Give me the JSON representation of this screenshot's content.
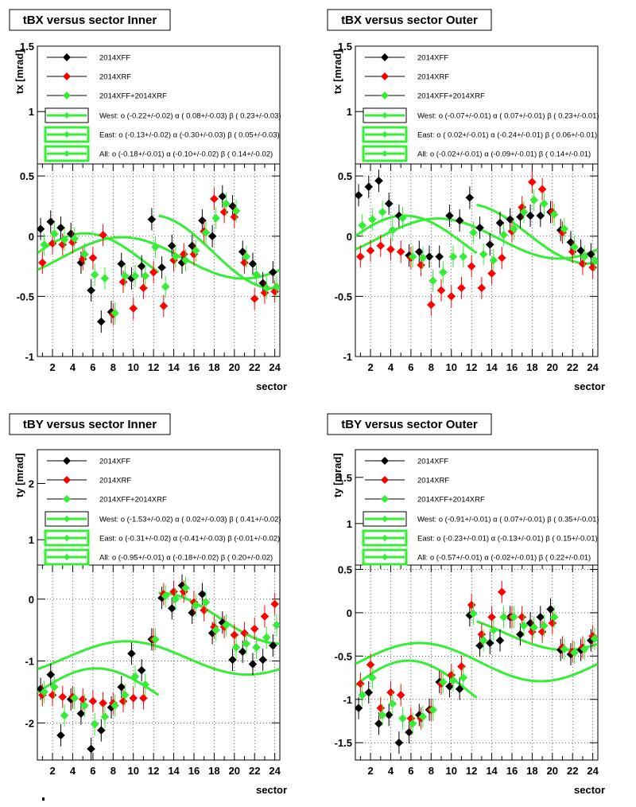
{
  "chart_data": [
    {
      "type": "scatter",
      "title": "tBX versus  sector Inner",
      "ylabel": "t_x [mrad]",
      "xlabel": "sector",
      "xlim": [
        0.5,
        24.5
      ],
      "ylim_main": [
        -1,
        0.6
      ],
      "ylim_legend": [
        0.6,
        1.5
      ],
      "yticks_main": [
        "-1",
        "-0.5",
        "0",
        "0.5"
      ],
      "yticks_legend": [
        "1",
        "1.5"
      ],
      "legend": [
        {
          "label": "2014XFF"
        },
        {
          "label": "2014XRF"
        },
        {
          "label": "2014XFF+2014XRF"
        },
        {
          "label": "West: o (-0.22+/-0.02) α ( 0.08+/-0.03) β ( 0.23+/-0.03)"
        },
        {
          "label": "East: o (-0.13+/-0.02) α (-0.30+/-0.03) β ( 0.05+/-0.03)"
        },
        {
          "label": "All: o (-0.18+/-0.01) α (-0.10+/-0.02) β ( 0.14+/-0.02)"
        }
      ],
      "fits": {
        "west": {
          "o": -0.22,
          "a": 0.08,
          "b": 0.23
        },
        "east": {
          "o": -0.13,
          "a": -0.3,
          "b": 0.05
        },
        "all": {
          "o": -0.18,
          "a": -0.1,
          "b": 0.14
        }
      },
      "series": [
        {
          "name": "2014XFF",
          "color": "#000000",
          "x": [
            1,
            2,
            3,
            4,
            5,
            6,
            7,
            8,
            9,
            10,
            11,
            12,
            13,
            14,
            15,
            16,
            17,
            18,
            19,
            20,
            21,
            22,
            23,
            24
          ],
          "y": [
            0.06,
            0.12,
            0.07,
            0.02,
            -0.22,
            -0.45,
            -0.71,
            -0.63,
            -0.23,
            -0.35,
            -0.25,
            0.14,
            -0.26,
            -0.08,
            -0.22,
            -0.08,
            0.13,
            0.0,
            0.33,
            0.25,
            -0.13,
            -0.23,
            -0.39,
            -0.3
          ]
        },
        {
          "name": "2014XRF",
          "color": "#ff0000",
          "x": [
            1,
            2,
            3,
            4,
            5,
            6,
            7,
            8,
            9,
            10,
            11,
            12,
            13,
            14,
            15,
            16,
            17,
            18,
            19,
            20,
            21,
            22,
            23,
            24
          ],
          "y": [
            -0.22,
            -0.06,
            -0.07,
            -0.05,
            -0.19,
            -0.18,
            0.01,
            -0.65,
            -0.38,
            -0.6,
            -0.43,
            -0.3,
            -0.58,
            -0.2,
            -0.15,
            -0.15,
            0.04,
            0.31,
            0.2,
            0.16,
            -0.22,
            -0.52,
            -0.47,
            -0.46
          ]
        },
        {
          "name": "2014XFF+2014XRF",
          "color": "#33ee33",
          "x": [
            1,
            2,
            3,
            4,
            5,
            6,
            7,
            8,
            9,
            10,
            11,
            12,
            13,
            14,
            15,
            16,
            17,
            18,
            19,
            20,
            21,
            22,
            23,
            24
          ],
          "y": [
            -0.07,
            0.02,
            -0.03,
            -0.02,
            -0.15,
            -0.32,
            -0.35,
            -0.64,
            -0.33,
            -0.33,
            -0.33,
            -0.09,
            -0.42,
            -0.17,
            -0.2,
            -0.12,
            0.03,
            0.15,
            0.27,
            0.21,
            -0.17,
            -0.32,
            -0.43,
            -0.42
          ]
        }
      ]
    },
    {
      "type": "scatter",
      "title": "tBX versus  sector Outer",
      "ylabel": "t_x [mrad]",
      "xlabel": "sector",
      "xlim": [
        0.5,
        24.5
      ],
      "ylim_main": [
        -1,
        0.6
      ],
      "ylim_legend": [
        0.6,
        1.5
      ],
      "yticks_main": [
        "-1",
        "-0.5",
        "0",
        "0.5"
      ],
      "yticks_legend": [
        "1",
        "1.5"
      ],
      "legend": [
        {
          "label": "2014XFF"
        },
        {
          "label": "2014XRF"
        },
        {
          "label": "2014XFF+2014XRF"
        },
        {
          "label": "West: o (-0.07+/-0.01) α ( 0.07+/-0.01) β ( 0.23+/-0.01)"
        },
        {
          "label": "East: o ( 0.02+/-0.01) α (-0.24+/-0.01) β ( 0.06+/-0.01)"
        },
        {
          "label": "All: o (-0.02+/-0.01) α (-0.09+/-0.01) β ( 0.14+/-0.01)"
        }
      ],
      "fits": {
        "west": {
          "o": -0.07,
          "a": 0.07,
          "b": 0.23
        },
        "east": {
          "o": 0.02,
          "a": -0.24,
          "b": 0.06
        },
        "all": {
          "o": -0.02,
          "a": -0.09,
          "b": 0.14
        }
      },
      "series": [
        {
          "name": "2014XFF",
          "color": "#000000",
          "x": [
            1,
            2,
            3,
            4,
            5,
            6,
            7,
            8,
            9,
            10,
            11,
            12,
            13,
            14,
            15,
            16,
            17,
            18,
            19,
            20,
            21,
            22,
            23,
            24
          ],
          "y": [
            0.34,
            0.41,
            0.46,
            0.27,
            0.17,
            -0.16,
            -0.13,
            -0.17,
            -0.17,
            0.17,
            0.13,
            0.32,
            0.07,
            -0.07,
            0.11,
            0.14,
            0.16,
            0.17,
            0.17,
            0.2,
            0.05,
            -0.05,
            -0.12,
            -0.15
          ]
        },
        {
          "name": "2014XRF",
          "color": "#ff0000",
          "x": [
            1,
            2,
            3,
            4,
            5,
            6,
            7,
            8,
            9,
            10,
            11,
            12,
            13,
            14,
            15,
            16,
            17,
            18,
            19,
            20,
            21,
            22,
            23,
            24
          ],
          "y": [
            -0.17,
            -0.12,
            -0.08,
            -0.11,
            -0.13,
            -0.18,
            -0.24,
            -0.57,
            -0.45,
            -0.5,
            -0.43,
            -0.25,
            -0.43,
            -0.31,
            -0.18,
            0.04,
            0.24,
            0.45,
            0.39,
            0.2,
            0.03,
            -0.13,
            -0.23,
            -0.26
          ]
        },
        {
          "name": "2014XFF+2014XRF",
          "color": "#33ee33",
          "x": [
            1,
            2,
            3,
            4,
            5,
            6,
            7,
            8,
            9,
            10,
            11,
            12,
            13,
            14,
            15,
            16,
            17,
            18,
            19,
            20,
            21,
            22,
            23,
            24
          ],
          "y": [
            0.09,
            0.14,
            0.2,
            0.05,
            0.15,
            -0.17,
            -0.18,
            -0.37,
            -0.3,
            -0.17,
            -0.17,
            0.03,
            -0.15,
            -0.2,
            0.01,
            0.06,
            0.2,
            0.3,
            0.27,
            0.18,
            0.06,
            -0.09,
            -0.17,
            -0.2
          ]
        }
      ]
    },
    {
      "type": "scatter",
      "title": "tBY versus  sector Inner",
      "ylabel": "t_y [mrad]",
      "xlabel": "sector",
      "xlim": [
        0.5,
        24.5
      ],
      "ylim_main": [
        -2.6,
        0.55
      ],
      "ylim_legend": [
        0.55,
        2.6
      ],
      "yticks_main": [
        "-2",
        "-1",
        "0"
      ],
      "yticks_legend": [
        "1",
        "2"
      ],
      "legend": [
        {
          "label": "2014XFF"
        },
        {
          "label": "2014XRF"
        },
        {
          "label": "2014XFF+2014XRF"
        },
        {
          "label": "West: o (-1.53+/-0.02) α ( 0.02+/-0.03) β ( 0.41+/-0.02)"
        },
        {
          "label": "East: o (-0.31+/-0.02) α (-0.41+/-0.03) β (-0.01+/-0.02)"
        },
        {
          "label": "All: o (-0.95+/-0.01) α (-0.18+/-0.02) β ( 0.20+/-0.02)"
        }
      ],
      "fits": {
        "west": {
          "o": -1.53,
          "a": 0.02,
          "b": 0.41
        },
        "east": {
          "o": -0.31,
          "a": -0.41,
          "b": -0.01
        },
        "all": {
          "o": -0.95,
          "a": -0.18,
          "b": 0.2
        }
      },
      "series": [
        {
          "name": "2014XFF",
          "color": "#000000",
          "x": [
            1,
            2,
            3,
            4,
            5,
            6,
            7,
            8,
            9,
            10,
            11,
            12,
            13,
            14,
            15,
            16,
            17,
            18,
            19,
            20,
            21,
            22,
            23,
            24
          ],
          "y": [
            -1.45,
            -1.22,
            -2.2,
            -1.62,
            -1.85,
            -2.42,
            -2.12,
            -1.75,
            -1.42,
            -0.88,
            -1.15,
            -0.65,
            0.02,
            -0.15,
            0.22,
            -0.22,
            0.08,
            -0.55,
            -0.38,
            -0.98,
            -0.85,
            -1.05,
            -0.98,
            -0.75
          ]
        },
        {
          "name": "2014XRF",
          "color": "#ff0000",
          "x": [
            1,
            2,
            3,
            4,
            5,
            6,
            7,
            8,
            9,
            10,
            11,
            12,
            13,
            14,
            15,
            16,
            17,
            18,
            19,
            20,
            21,
            22,
            23,
            24
          ],
          "y": [
            -1.55,
            -1.55,
            -1.58,
            -1.58,
            -1.62,
            -1.65,
            -1.68,
            -1.68,
            -1.65,
            -1.6,
            -1.6,
            -0.65,
            0.08,
            0.12,
            0.12,
            -0.05,
            -0.18,
            -0.45,
            -0.45,
            -0.58,
            -0.55,
            -0.48,
            -0.28,
            -0.08
          ]
        },
        {
          "name": "2014XFF+2014XRF",
          "color": "#33ee33",
          "x": [
            1,
            2,
            3,
            4,
            5,
            6,
            7,
            8,
            9,
            10,
            11,
            12,
            13,
            14,
            15,
            16,
            17,
            18,
            19,
            20,
            21,
            22,
            23,
            24
          ],
          "y": [
            -1.5,
            -1.42,
            -1.88,
            -1.6,
            -1.72,
            -2.02,
            -1.9,
            -1.72,
            -1.55,
            -1.25,
            -1.38,
            -0.65,
            0.05,
            0.0,
            0.18,
            -0.1,
            -0.05,
            -0.5,
            -0.42,
            -0.78,
            -0.72,
            -0.78,
            -0.62,
            -0.42
          ]
        }
      ]
    },
    {
      "type": "scatter",
      "title": "tBY versus  sector Outer",
      "ylabel": "t_y [mrad]",
      "xlabel": "sector",
      "xlim": [
        0.5,
        24.5
      ],
      "ylim_main": [
        -1.7,
        0.55
      ],
      "ylim_legend": [
        0.55,
        1.8
      ],
      "yticks_main": [
        "-1.5",
        "-1",
        "-0.5",
        "0",
        "0.5"
      ],
      "yticks_legend": [
        "1",
        "1.5"
      ],
      "legend": [
        {
          "label": "2014XFF"
        },
        {
          "label": "2014XRF"
        },
        {
          "label": "2014XFF+2014XRF"
        },
        {
          "label": "West: o (-0.91+/-0.01) α ( 0.07+/-0.01) β ( 0.35+/-0.01)"
        },
        {
          "label": "East: o (-0.23+/-0.01) α (-0.13+/-0.01) β ( 0.15+/-0.01)"
        },
        {
          "label": "All: o (-0.57+/-0.01) α (-0.02+/-0.01) β ( 0.22+/-0.01)"
        }
      ],
      "fits": {
        "west": {
          "o": -0.91,
          "a": 0.07,
          "b": 0.35
        },
        "east": {
          "o": -0.23,
          "a": -0.13,
          "b": 0.15
        },
        "all": {
          "o": -0.57,
          "a": -0.02,
          "b": 0.22
        }
      },
      "series": [
        {
          "name": "2014XFF",
          "color": "#000000",
          "x": [
            1,
            2,
            3,
            4,
            5,
            6,
            7,
            8,
            9,
            10,
            11,
            12,
            13,
            14,
            15,
            16,
            17,
            18,
            19,
            20,
            21,
            22,
            23,
            24
          ],
          "y": [
            -1.1,
            -0.92,
            -1.28,
            -1.18,
            -1.5,
            -1.38,
            -1.18,
            -1.12,
            -0.8,
            -0.85,
            -0.88,
            -0.03,
            -0.38,
            -0.35,
            -0.32,
            -0.05,
            -0.25,
            -0.12,
            -0.05,
            0.04,
            -0.43,
            -0.48,
            -0.43,
            -0.32
          ]
        },
        {
          "name": "2014XRF",
          "color": "#ff0000",
          "x": [
            1,
            2,
            3,
            4,
            5,
            6,
            7,
            8,
            9,
            10,
            11,
            12,
            13,
            14,
            15,
            16,
            17,
            18,
            19,
            20,
            21,
            22,
            23,
            24
          ],
          "y": [
            -0.82,
            -0.6,
            -1.1,
            -0.92,
            -0.95,
            -1.22,
            -1.22,
            -1.12,
            -0.82,
            -0.72,
            -0.62,
            0.09,
            -0.25,
            -0.05,
            0.24,
            -0.05,
            -0.05,
            -0.22,
            -0.22,
            -0.12,
            -0.4,
            -0.45,
            -0.4,
            -0.27
          ]
        },
        {
          "name": "2014XFF+2014XRF",
          "color": "#33ee33",
          "x": [
            1,
            2,
            3,
            4,
            5,
            6,
            7,
            8,
            9,
            10,
            11,
            12,
            13,
            14,
            15,
            16,
            17,
            18,
            19,
            20,
            21,
            22,
            23,
            24
          ],
          "y": [
            -0.95,
            -0.75,
            -1.18,
            -1.05,
            -1.22,
            -1.28,
            -1.2,
            -1.12,
            -0.8,
            -0.78,
            -0.75,
            -0.01,
            -0.32,
            -0.2,
            -0.05,
            -0.05,
            -0.15,
            -0.17,
            -0.15,
            -0.05,
            -0.42,
            -0.46,
            -0.42,
            -0.3
          ]
        }
      ]
    }
  ]
}
